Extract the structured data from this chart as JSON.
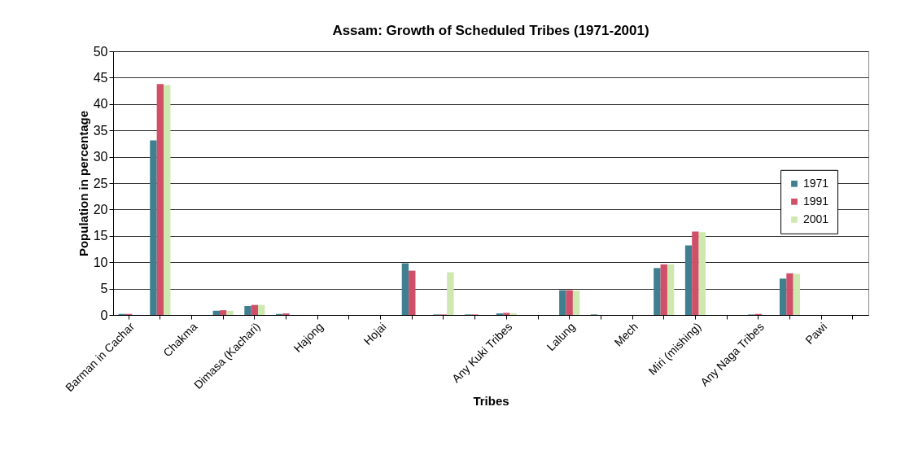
{
  "chart_data": {
    "type": "bar",
    "title": "Assam: Growth of Scheduled Tribes (1971-2001)",
    "xlabel": "Tribes",
    "ylabel": "Population in percentage",
    "categories": [
      "Barman in Cachar",
      null,
      "Chakma",
      null,
      "Dimasa (Kachari)",
      null,
      "Hajong",
      null,
      "Hojai",
      null,
      null,
      null,
      "Any Kuki Tribes",
      null,
      "Lalung",
      null,
      "Mech",
      null,
      "Miri (mishing)",
      null,
      "Any Naga Tribes",
      null,
      "Pawi",
      null
    ],
    "series": [
      {
        "name": "1971",
        "color": "#3f7f8f",
        "values": [
          0.2,
          33.1,
          0,
          0.8,
          1.7,
          0.2,
          0,
          0,
          0,
          9.8,
          0.1,
          0.1,
          0.3,
          0,
          4.7,
          0.1,
          0,
          8.9,
          13.2,
          0,
          0.1,
          6.9,
          0,
          0
        ]
      },
      {
        "name": "1991",
        "color": "#d0506a",
        "values": [
          0.2,
          43.8,
          0,
          0.9,
          1.9,
          0.3,
          0,
          0,
          0,
          8.4,
          0.1,
          0.1,
          0.4,
          0,
          4.7,
          0,
          0,
          9.6,
          15.8,
          0,
          0.2,
          7.9,
          0,
          0
        ]
      },
      {
        "name": "2001",
        "color": "#cfe8b0",
        "values": [
          null,
          43.6,
          0,
          0.8,
          1.9,
          null,
          0,
          0,
          0,
          0,
          8.1,
          null,
          0.3,
          0,
          4.6,
          0,
          0,
          9.6,
          15.7,
          0,
          null,
          7.8,
          0,
          0
        ]
      }
    ],
    "ylim": [
      0,
      50
    ],
    "yticks": [
      0,
      5,
      10,
      15,
      20,
      25,
      30,
      35,
      40,
      45,
      50
    ],
    "grid": "y",
    "legend": "right"
  }
}
